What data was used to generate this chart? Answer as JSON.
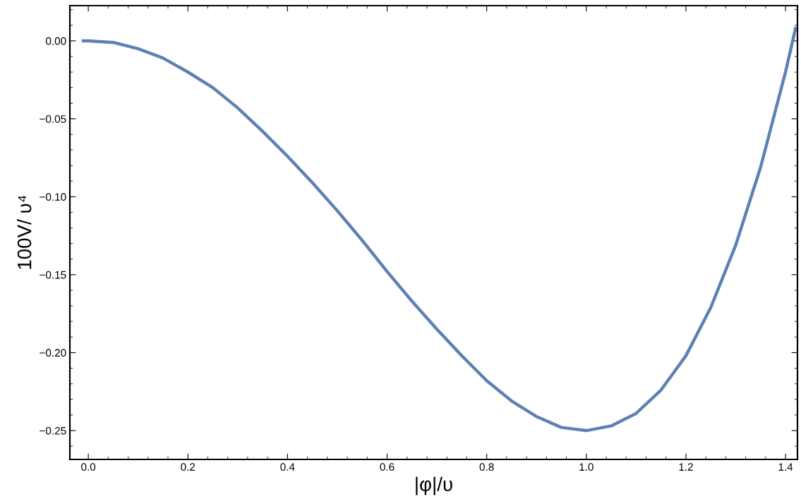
{
  "chart_data": {
    "type": "line",
    "xlabel": "|φ|/υ",
    "ylabel": "100V/ υ⁴",
    "x": [
      -0.01,
      0,
      0.05,
      0.1,
      0.15,
      0.2,
      0.25,
      0.3,
      0.35,
      0.4,
      0.45,
      0.5,
      0.55,
      0.6,
      0.65,
      0.7,
      0.75,
      0.8,
      0.85,
      0.9,
      0.95,
      1.0,
      1.05,
      1.1,
      1.15,
      1.2,
      1.25,
      1.3,
      1.35,
      1.4,
      1.42
    ],
    "series": [
      {
        "color": "#5e81b5",
        "values": [
          0.0,
          0.0,
          -0.001,
          -0.005,
          -0.011,
          -0.02,
          -0.03,
          -0.043,
          -0.058,
          -0.074,
          -0.091,
          -0.109,
          -0.128,
          -0.148,
          -0.167,
          -0.185,
          -0.202,
          -0.218,
          -0.231,
          -0.241,
          -0.248,
          -0.25,
          -0.247,
          -0.239,
          -0.224,
          -0.202,
          -0.171,
          -0.131,
          -0.081,
          -0.02,
          0.008
        ]
      }
    ],
    "xlim": [
      -0.037,
      1.424
    ],
    "ylim": [
      -0.2685,
      0.0226
    ],
    "xticks": [
      {
        "value": 0,
        "label": "0.0"
      },
      0.2,
      0.4,
      0.6,
      0.8,
      {
        "value": 1,
        "label": "1.0"
      },
      1.2,
      1.4
    ],
    "yticks": [
      {
        "value": 0,
        "label": "0.00"
      },
      {
        "value": -0.05,
        "label": "−0.05"
      },
      {
        "value": -0.1,
        "label": "−0.10"
      },
      {
        "value": -0.15,
        "label": "−0.15"
      },
      {
        "value": -0.2,
        "label": "−0.20"
      },
      {
        "value": -0.25,
        "label": "−0.25"
      }
    ],
    "grid": false,
    "legend": false,
    "marker": "none",
    "line_style": "solid"
  }
}
